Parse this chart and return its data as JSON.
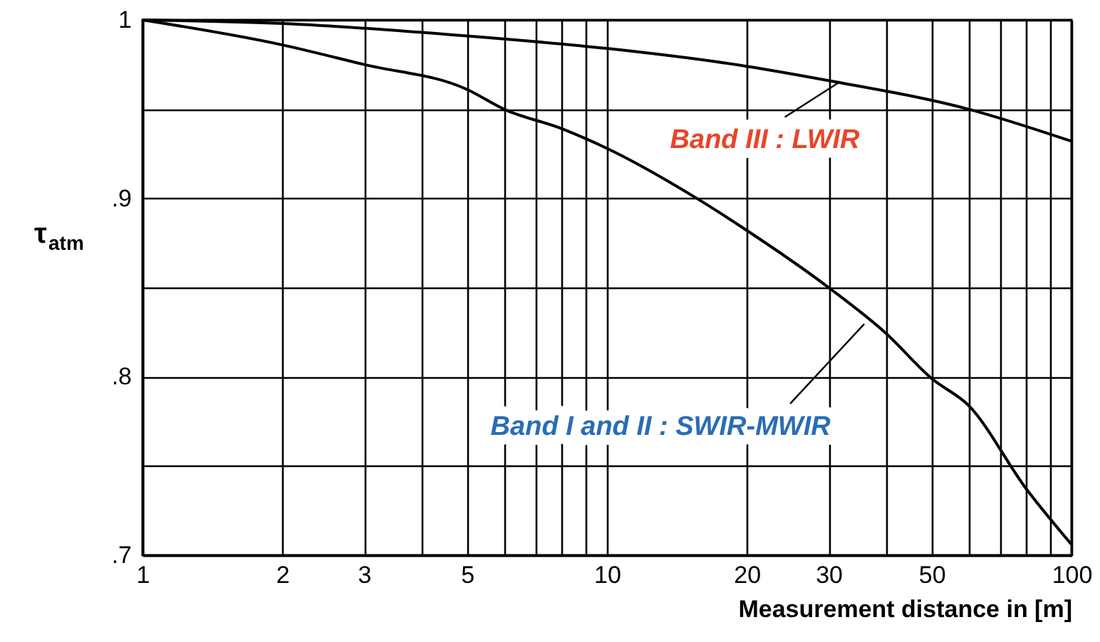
{
  "chart_data": {
    "type": "line",
    "xlabel": "Measurement distance in [m]",
    "ylabel": "τ$_{atm}$",
    "log": "x",
    "grid": true,
    "line_style": "solid",
    "marker": "none",
    "xlim": [
      1,
      100
    ],
    "ylim": [
      0.7,
      1
    ],
    "xticks": [
      1,
      2,
      3,
      {
        "value": 4,
        "label": null
      },
      5,
      {
        "value": 6,
        "label": null
      },
      {
        "value": 7,
        "label": null
      },
      {
        "value": 8,
        "label": null
      },
      {
        "value": 9,
        "label": null
      },
      10,
      20,
      30,
      {
        "value": 40,
        "label": null
      },
      50,
      {
        "value": 60,
        "label": null
      },
      {
        "value": 70,
        "label": null
      },
      {
        "value": 80,
        "label": null
      },
      {
        "value": 90,
        "label": null
      },
      100
    ],
    "yticks": [
      {
        "value": 0.7,
        "label": ".7"
      },
      {
        "value": 0.75,
        "label": null
      },
      {
        "value": 0.8,
        "label": ".8"
      },
      {
        "value": 0.85,
        "label": null
      },
      {
        "value": 0.9,
        "label": ".9"
      },
      {
        "value": 0.95,
        "label": null
      },
      1
    ],
    "series": [
      {
        "color": "#000000",
        "x": [
          1,
          2,
          5,
          10,
          20,
          30,
          60,
          100
        ],
        "values": [
          1,
          0.998,
          0.991,
          0.984,
          0.974,
          0.966,
          0.95,
          0.932
        ]
      },
      {
        "color": "#000000",
        "x": [
          1,
          2,
          3,
          5,
          6,
          8,
          10,
          15.6,
          20,
          30,
          40,
          50,
          60,
          80,
          100
        ],
        "values": [
          1,
          0.986,
          0.975,
          0.961,
          0.95,
          0.939,
          0.928,
          0.9,
          0.882,
          0.85,
          0.824,
          0.799,
          0.784,
          0.737,
          0.706
        ]
      }
    ],
    "annotations": [
      {
        "text": "Band III : LWIR",
        "x": 31.8,
        "y": 0.9655
      },
      {
        "text": "Band I and II : SWIR-MWIR",
        "x": 35.8,
        "y": 0.8296
      }
    ]
  }
}
